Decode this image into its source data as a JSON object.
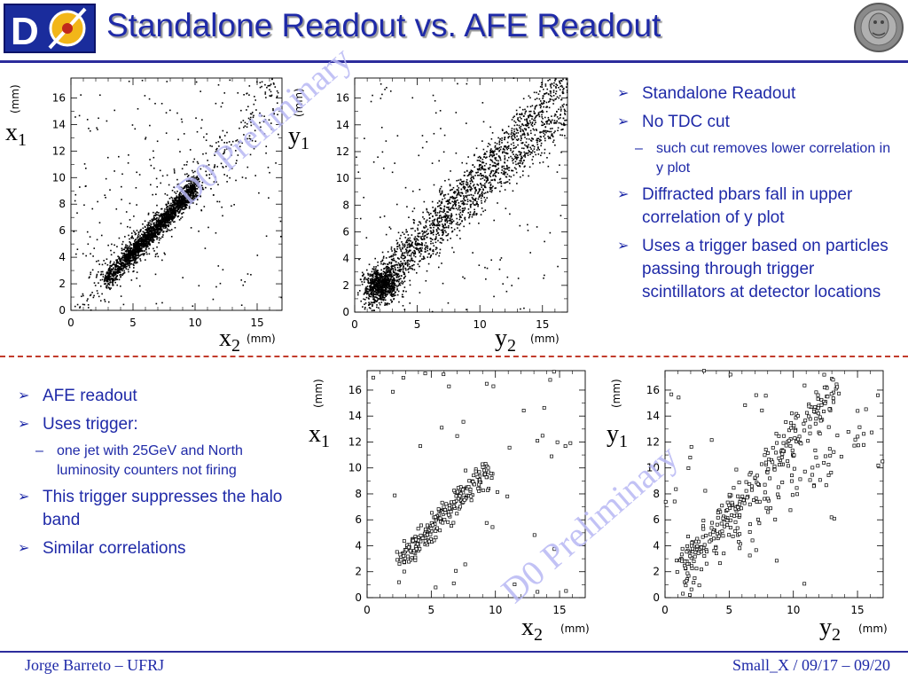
{
  "header": {
    "title": "Standalone Readout vs. AFE Readout",
    "logo_left_text": "DØ"
  },
  "top_bullets": [
    {
      "level": 1,
      "text": "Standalone Readout"
    },
    {
      "level": 1,
      "text": "No TDC cut"
    },
    {
      "level": 2,
      "text": "such cut removes lower correlation in y plot"
    },
    {
      "level": 1,
      "text": "Diffracted pbars fall in upper correlation of y plot"
    },
    {
      "level": 1,
      "text": "Uses a trigger based on particles passing through trigger scintillators at detector locations"
    }
  ],
  "bottom_bullets": [
    {
      "level": 1,
      "text": "AFE readout"
    },
    {
      "level": 1,
      "text": "Uses trigger:"
    },
    {
      "level": 2,
      "text": "one jet with 25GeV and North luminosity counters not firing"
    },
    {
      "level": 1,
      "text": "This trigger suppresses the halo band"
    },
    {
      "level": 1,
      "text": "Similar correlations"
    }
  ],
  "watermarks": [
    "D0 Preliminary",
    "D0 Preliminary"
  ],
  "footer": {
    "left": "Jorge Barreto – UFRJ",
    "right": "Small_X / 09/17 – 09/20"
  },
  "colors": {
    "title": "#1f2aa8",
    "text": "#1f2aa8",
    "rule": "#2c2c9c",
    "separator": "#c23b2b",
    "watermark": "#b8b8f4"
  },
  "chart_data": [
    {
      "id": "standalone-x",
      "type": "scatter",
      "xlabel": "x",
      "xlabel_sub": "2",
      "xunit": "(mm)",
      "ylabel": "x",
      "ylabel_sub": "1",
      "yunit": "(mm)",
      "xlim": [
        0,
        17
      ],
      "ylim": [
        0,
        17.5
      ],
      "xticks": [
        "0",
        "5",
        "10",
        "15"
      ],
      "yticks": [
        "0",
        "2",
        "4",
        "6",
        "8",
        "10",
        "12",
        "14",
        "16"
      ],
      "components": [
        {
          "kind": "line",
          "n": 1500,
          "x": [
            2.8,
            10.2
          ],
          "slope": 1.0,
          "intercept": -0.6,
          "sx": 0.25,
          "sy": 0.4
        },
        {
          "kind": "line",
          "n": 700,
          "x": [
            4.5,
            9.8
          ],
          "slope": 1.0,
          "intercept": -0.8,
          "sx": 0.15,
          "sy": 0.3
        },
        {
          "kind": "line",
          "n": 350,
          "x": [
            0.5,
            17
          ],
          "slope": 1.0,
          "intercept": -0.2,
          "sx": 0.2,
          "sy": 1.3
        },
        {
          "kind": "line",
          "n": 100,
          "x": [
            1,
            16
          ],
          "slope": 0.5,
          "intercept": 6,
          "sx": 0.2,
          "sy": 3
        },
        {
          "kind": "uniform",
          "n": 120
        }
      ]
    },
    {
      "id": "standalone-y",
      "type": "scatter",
      "xlabel": "y",
      "xlabel_sub": "2",
      "xunit": "(mm)",
      "ylabel": "y",
      "ylabel_sub": "1",
      "yunit": "(mm)",
      "xlim": [
        0,
        17
      ],
      "ylim": [
        0,
        17.5
      ],
      "xticks": [
        "0",
        "5",
        "10",
        "15"
      ],
      "yticks": [
        "0",
        "2",
        "4",
        "6",
        "8",
        "10",
        "12",
        "14",
        "16"
      ],
      "components": [
        {
          "kind": "line",
          "n": 1000,
          "x": [
            1,
            17
          ],
          "slope": 1.0,
          "intercept": 0.6,
          "sx": 0.2,
          "sy": 0.7
        },
        {
          "kind": "line",
          "n": 900,
          "x": [
            1,
            17
          ],
          "slope": 0.88,
          "intercept": 0.0,
          "sx": 0.2,
          "sy": 0.7
        },
        {
          "kind": "blob",
          "n": 650,
          "cx": 2.2,
          "cy": 2.0,
          "sx": 0.7,
          "sy": 0.6
        },
        {
          "kind": "uniform",
          "n": 180
        }
      ]
    },
    {
      "id": "afe-x",
      "type": "scatter",
      "xlabel": "x",
      "xlabel_sub": "2",
      "xunit": "(mm)",
      "ylabel": "x",
      "ylabel_sub": "1",
      "yunit": "(mm)",
      "xlim": [
        0,
        17
      ],
      "ylim": [
        0,
        17.5
      ],
      "xticks": [
        "0",
        "5",
        "10",
        "15"
      ],
      "yticks": [
        "0",
        "2",
        "4",
        "6",
        "8",
        "10",
        "12",
        "14",
        "16"
      ],
      "components": [
        {
          "kind": "line",
          "n": 220,
          "x": [
            2.5,
            9.5
          ],
          "slope": 1.0,
          "intercept": 0.3,
          "sx": 0.25,
          "sy": 0.5
        },
        {
          "kind": "uniform",
          "n": 40
        }
      ]
    },
    {
      "id": "afe-y",
      "type": "scatter",
      "xlabel": "y",
      "xlabel_sub": "2",
      "xunit": "(mm)",
      "ylabel": "y",
      "ylabel_sub": "1",
      "yunit": "(mm)",
      "xlim": [
        0,
        17
      ],
      "ylim": [
        0,
        17.5
      ],
      "xticks": [
        "0",
        "5",
        "10",
        "15"
      ],
      "yticks": [
        "0",
        "2",
        "4",
        "6",
        "8",
        "10",
        "12",
        "14",
        "16"
      ],
      "components": [
        {
          "kind": "line",
          "n": 260,
          "x": [
            1,
            13.5
          ],
          "slope": 1.1,
          "intercept": 1.2,
          "sx": 0.2,
          "sy": 0.8
        },
        {
          "kind": "line",
          "n": 80,
          "x": [
            1,
            16
          ],
          "slope": 0.85,
          "intercept": 0.0,
          "sx": 0.2,
          "sy": 0.9
        },
        {
          "kind": "uniform",
          "n": 40
        }
      ]
    }
  ]
}
